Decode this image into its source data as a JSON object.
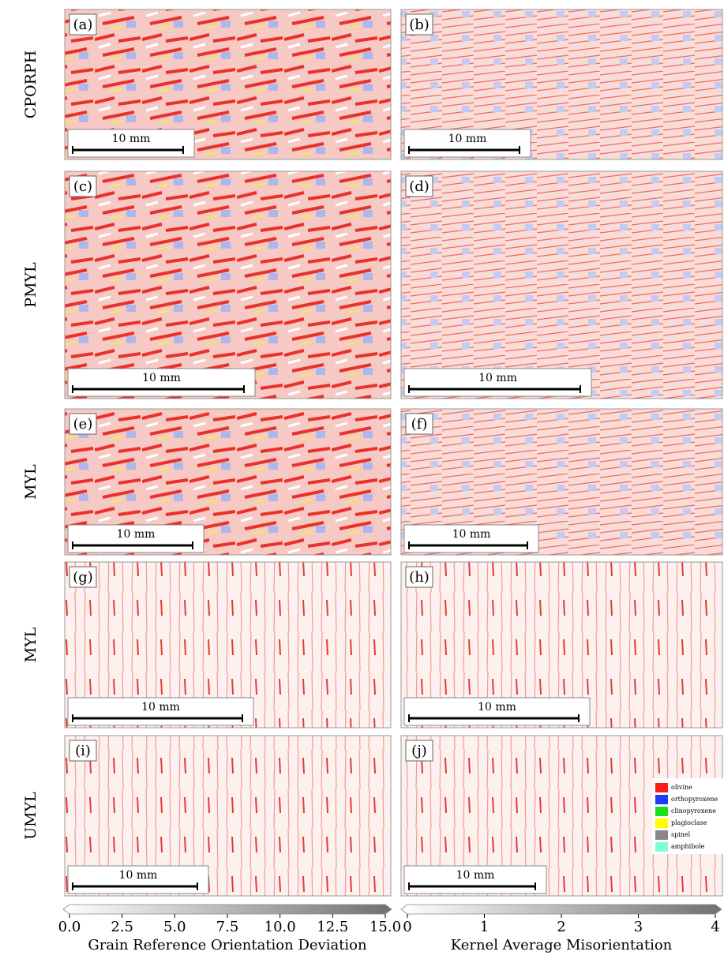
{
  "rows": [
    {
      "label": "CPORPH",
      "panels": [
        {
          "label": "(a)",
          "scale_bar": "10 mm"
        },
        {
          "label": "(b)",
          "scale_bar": "10 mm"
        }
      ]
    },
    {
      "label": "PMYL",
      "panels": [
        {
          "label": "(c)",
          "scale_bar": "10 mm"
        },
        {
          "label": "(d)",
          "scale_bar": "10 mm"
        }
      ]
    },
    {
      "label": "MYL",
      "panels": [
        {
          "label": "(e)",
          "scale_bar": "10 mm"
        },
        {
          "label": "(f)",
          "scale_bar": "10 mm"
        }
      ]
    },
    {
      "label": "MYL",
      "panels": [
        {
          "label": "(g)",
          "scale_bar": "10 mm"
        },
        {
          "label": "(h)",
          "scale_bar": "10 mm"
        }
      ]
    },
    {
      "label": "UMYL",
      "panels": [
        {
          "label": "(i)",
          "scale_bar": "10 mm"
        },
        {
          "label": "(j)",
          "scale_bar": "10 mm"
        }
      ]
    }
  ],
  "legend": {
    "items": [
      {
        "label": "olivine",
        "color": "#ff1a1a"
      },
      {
        "label": "orthopyroxene",
        "color": "#1a3cff"
      },
      {
        "label": "clinopyroxene",
        "color": "#1adf1a"
      },
      {
        "label": "plagioclase",
        "color": "#ffff00"
      },
      {
        "label": "spinel",
        "color": "#888888"
      },
      {
        "label": "amphibole",
        "color": "#7fffd4"
      }
    ]
  },
  "colorbars": [
    {
      "title": "Grain Reference Orientation Deviation",
      "lim": [
        0,
        15
      ],
      "ticks": [
        {
          "value": 0,
          "label": "0.0"
        },
        {
          "value": 2.5,
          "label": "2.5"
        },
        {
          "value": 5,
          "label": "5.0"
        },
        {
          "value": 7.5,
          "label": "7.5"
        },
        {
          "value": 10,
          "label": "10.0"
        },
        {
          "value": 12.5,
          "label": "12.5"
        },
        {
          "value": 15,
          "label": "15.0"
        }
      ]
    },
    {
      "title": "Kernel Average Misorientation",
      "lim": [
        0,
        4
      ],
      "ticks": [
        0,
        1,
        2,
        3,
        4
      ]
    }
  ]
}
